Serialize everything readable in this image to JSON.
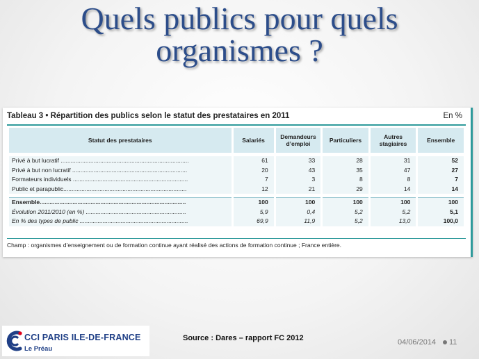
{
  "slide": {
    "title_line1": "Quels publics pour quels",
    "title_line2": "organismes ?"
  },
  "table": {
    "caption": "Tableau 3 • Répartition des publics selon le statut des prestataires en 2011",
    "unit": "En %",
    "headers": [
      "Statut des prestataires",
      "Salariés",
      "Demandeurs d’emploi",
      "Particuliers",
      "Autres stagiaires",
      "Ensemble"
    ],
    "rows": [
      {
        "label": "Privé à but lucratif ..............................................................................",
        "values": [
          "61",
          "33",
          "28",
          "31",
          "52"
        ]
      },
      {
        "label": "Privé à but non lucratif ......................................................................",
        "values": [
          "20",
          "43",
          "35",
          "47",
          "27"
        ]
      },
      {
        "label": "Formateurs individuels ......................................................................",
        "values": [
          "7",
          "3",
          "8",
          "8",
          "7"
        ]
      },
      {
        "label": "Public et parapublic...........................................................................",
        "values": [
          "12",
          "21",
          "29",
          "14",
          "14"
        ]
      },
      {
        "label": "Ensemble.........................................................................................",
        "values": [
          "100",
          "100",
          "100",
          "100",
          "100"
        ]
      },
      {
        "label": "Évolution 2011/2010 (en %) .............................................................",
        "values": [
          "5,9",
          "0,4",
          "5,2",
          "5,2",
          "5,1"
        ]
      },
      {
        "label": "En % des types de public ..................................................................",
        "values": [
          "69,9",
          "11,9",
          "5,2",
          "13,0",
          "100,0"
        ]
      }
    ],
    "footnote": "Champ : organismes d’enseignement ou de formation continue ayant réalisé des actions de formation continue ; France entière."
  },
  "footer": {
    "logo_org": "CCI PARIS ILE-DE-FRANCE",
    "logo_sub": "Le Préau",
    "source": "Source : Dares – rapport FC 2012",
    "date": "04/06/2014",
    "page_number": "11"
  },
  "colors": {
    "title": "#2c4d8a",
    "teal_accent": "#2e9a9b",
    "header_fill": "#d6eaf0",
    "cell_fill": "#eef6f8",
    "logo_blue": "#1f3f86"
  },
  "icons": {
    "logo": "cci-logo-icon"
  }
}
